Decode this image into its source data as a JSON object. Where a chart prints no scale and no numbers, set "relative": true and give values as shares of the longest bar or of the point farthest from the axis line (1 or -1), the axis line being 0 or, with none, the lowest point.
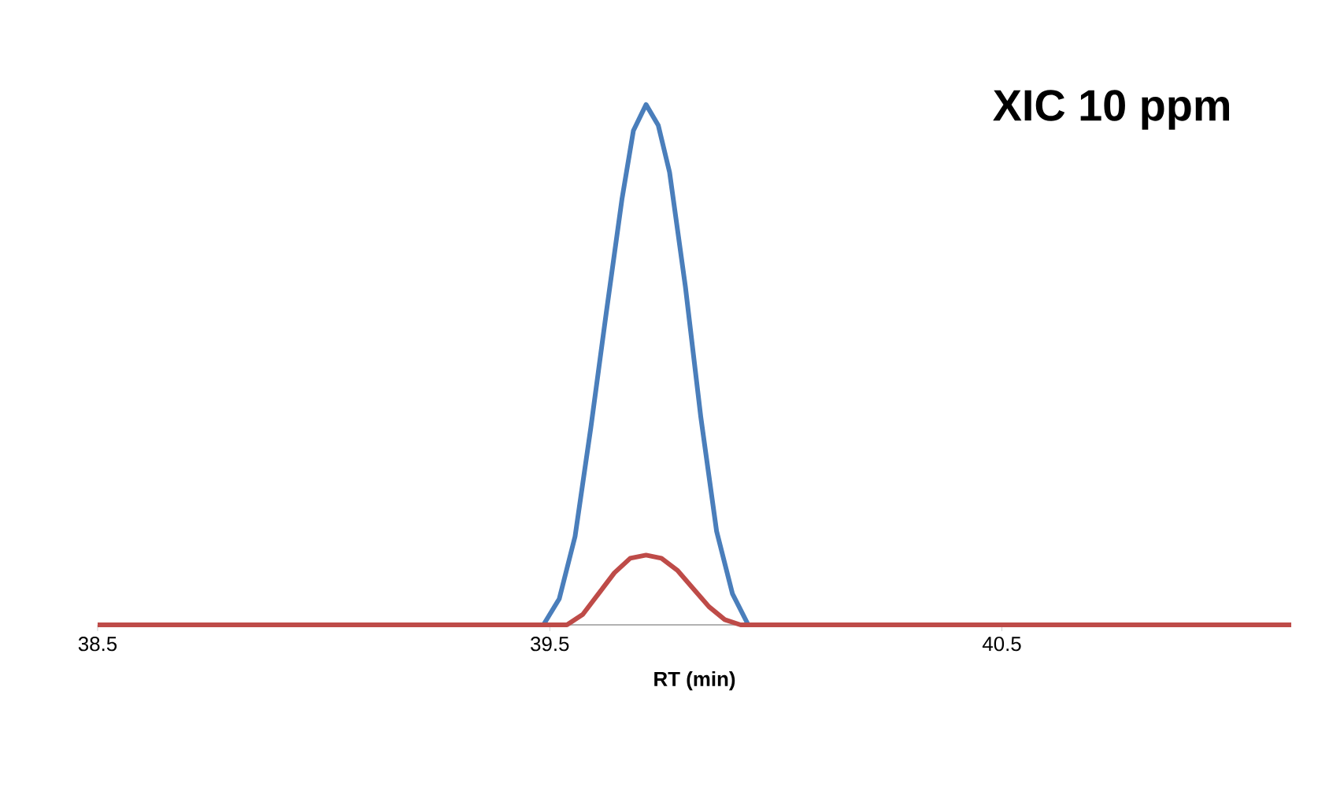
{
  "chart_data": {
    "type": "line",
    "title": "XIC 10 ppm",
    "xlabel": "RT (min)",
    "relative": true,
    "xlim": [
      38.5,
      41.14
    ],
    "xticks": [
      38.5,
      39.5,
      40.5
    ],
    "marker": "none",
    "line_style": "solid",
    "series": [
      {
        "color": "#4a7ebb",
        "x": [
          38.5,
          39.486,
          39.521,
          39.556,
          39.591,
          39.625,
          39.66,
          39.685,
          39.713,
          39.74,
          39.765,
          39.8,
          39.834,
          39.869,
          39.904,
          39.939,
          41.14
        ],
        "values": [
          0,
          0,
          0.05,
          0.17,
          0.38,
          0.6,
          0.82,
          0.95,
          1.0,
          0.96,
          0.87,
          0.65,
          0.4,
          0.18,
          0.06,
          0,
          0
        ]
      },
      {
        "color": "#be4b48",
        "x": [
          38.5,
          39.538,
          39.573,
          39.608,
          39.643,
          39.678,
          39.713,
          39.747,
          39.782,
          39.817,
          39.852,
          39.887,
          39.922,
          41.14
        ],
        "values": [
          0,
          0,
          0.02,
          0.06,
          0.1,
          0.128,
          0.134,
          0.128,
          0.105,
          0.07,
          0.035,
          0.01,
          0,
          0
        ]
      }
    ]
  }
}
